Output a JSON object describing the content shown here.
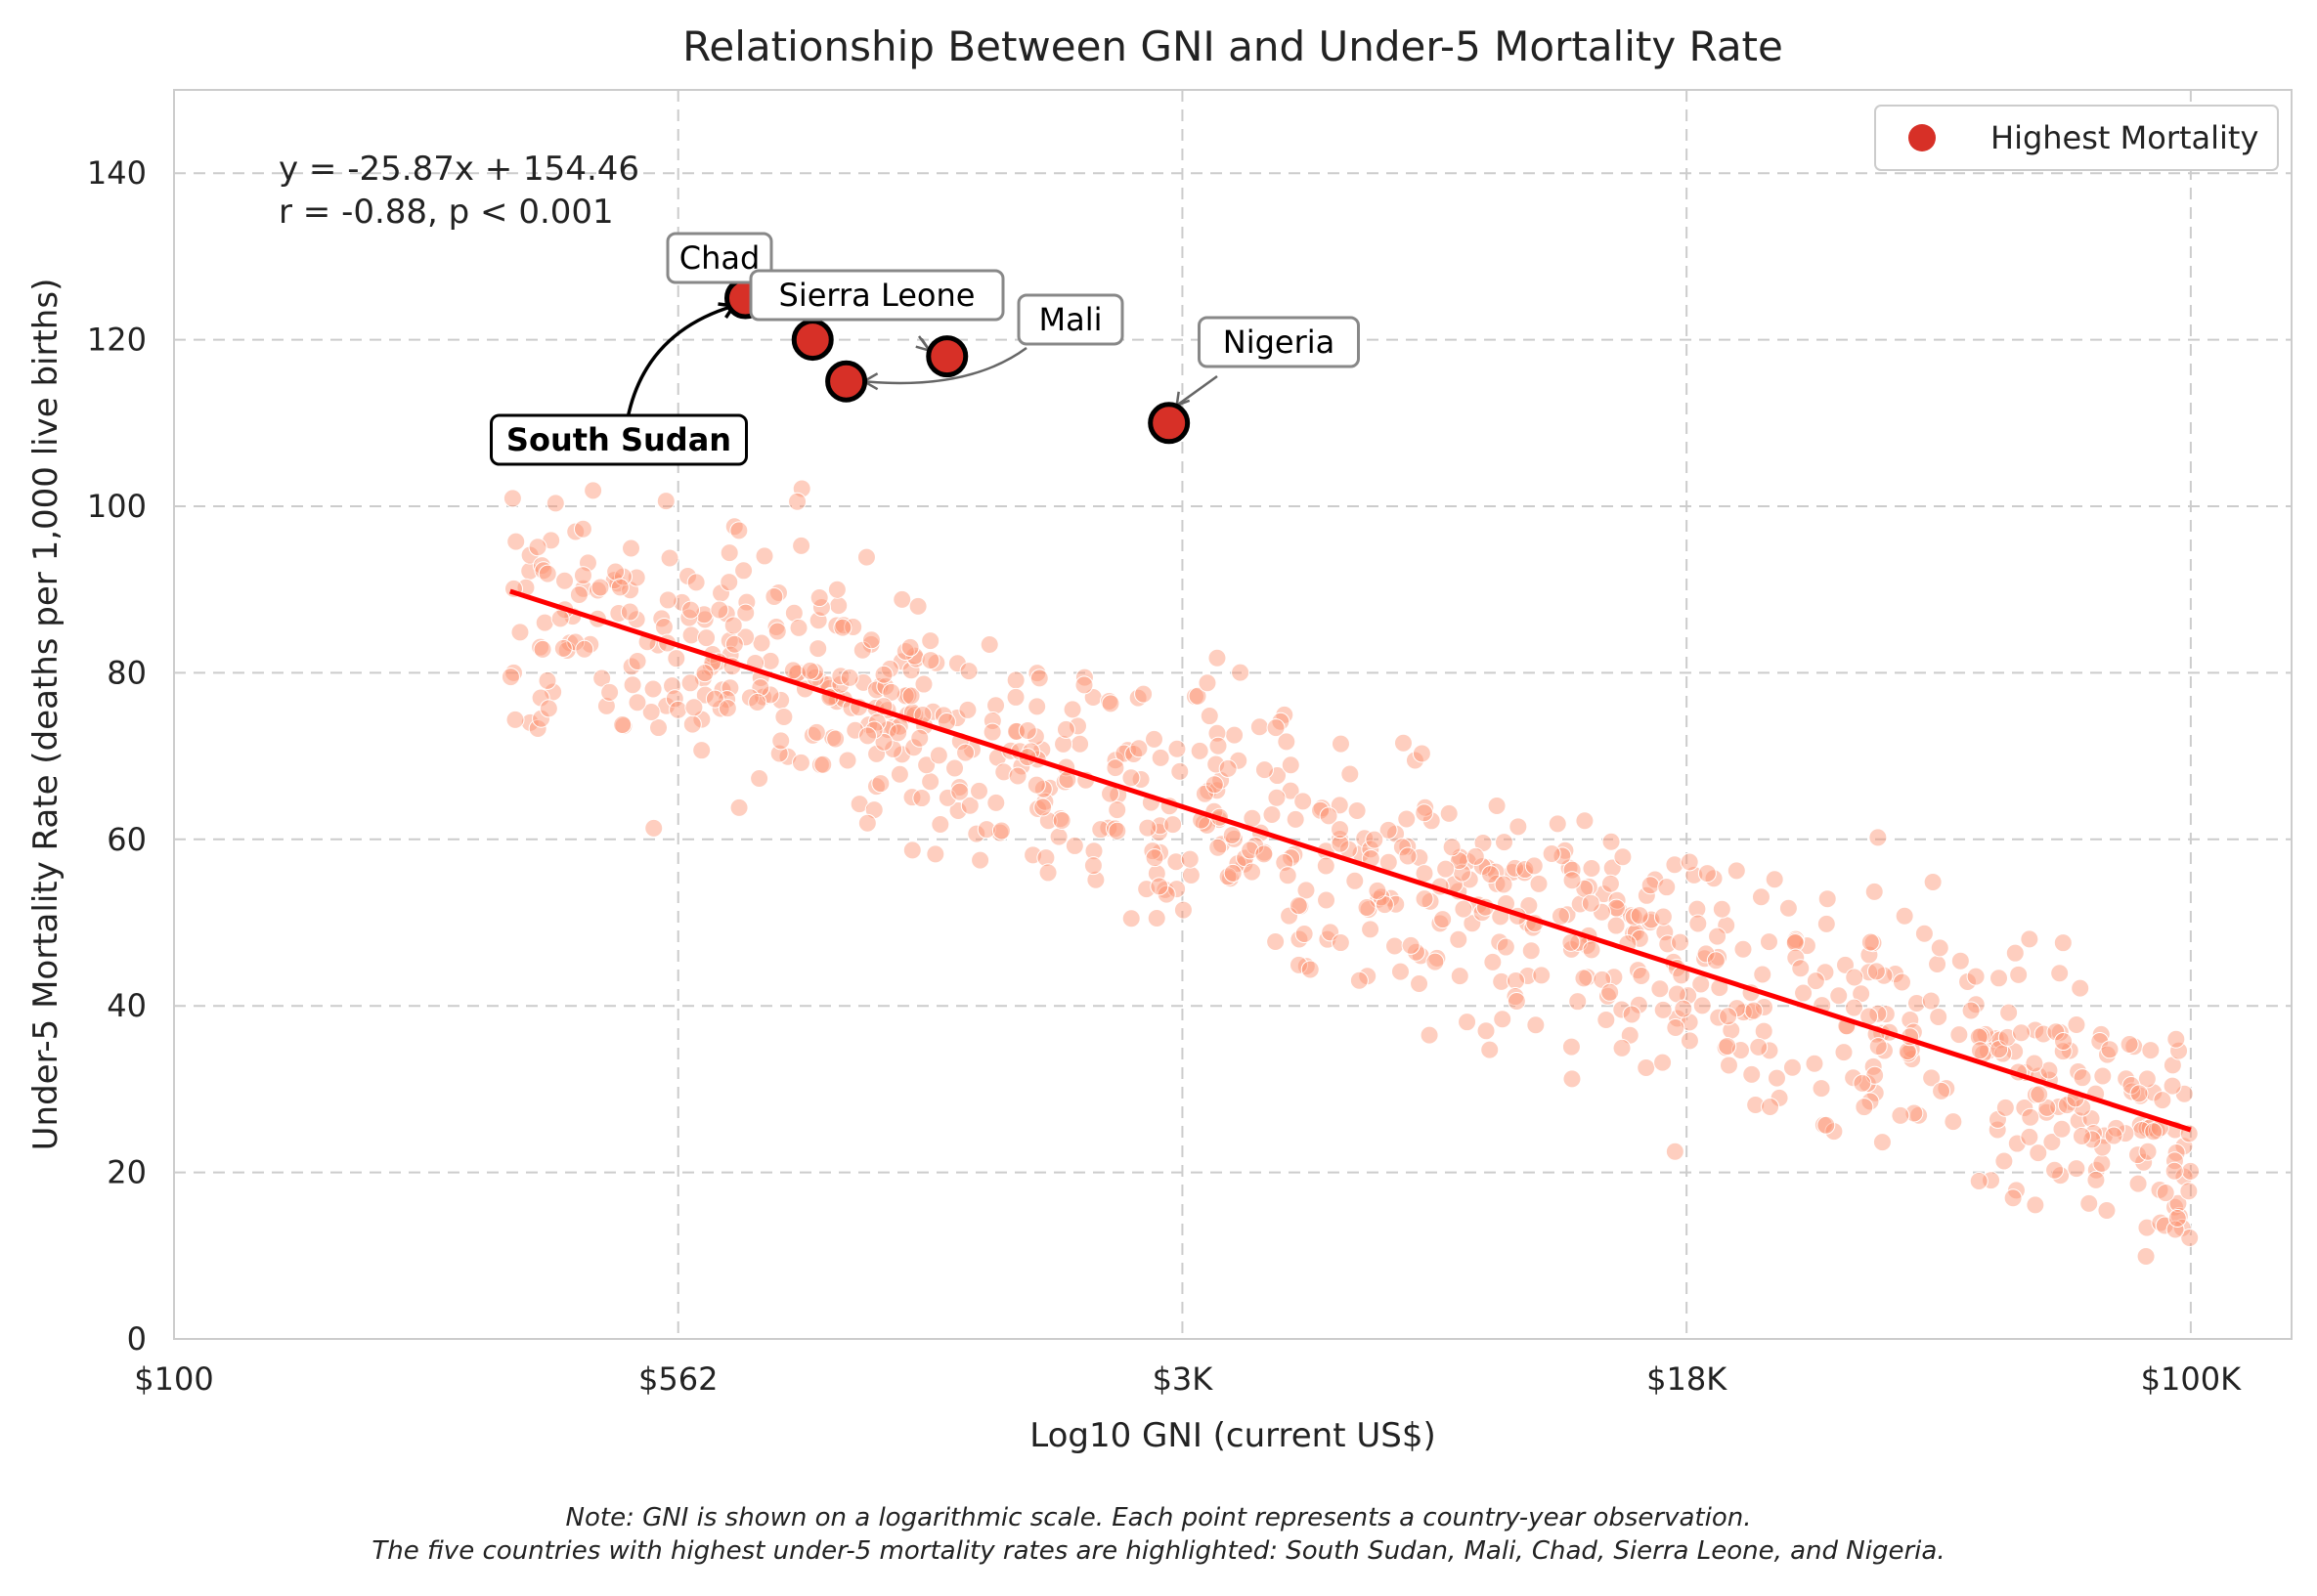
{
  "chart_data": {
    "type": "scatter",
    "title": "Relationship Between GNI and Under-5 Mortality Rate",
    "xlabel": "Log10 GNI (current US$)",
    "ylabel": "Under-5 Mortality Rate (deaths per 1,000 live births)",
    "x_scale": "log10",
    "xlim_log10": [
      2,
      5.15
    ],
    "ylim": [
      0,
      150
    ],
    "x_ticks": [
      {
        "value": 2.0,
        "label": "$100"
      },
      {
        "value": 2.75,
        "label": "$562"
      },
      {
        "value": 3.5,
        "label": "$3K"
      },
      {
        "value": 4.25,
        "label": "$18K"
      },
      {
        "value": 5.0,
        "label": "$100K"
      }
    ],
    "y_ticks": [
      0,
      20,
      40,
      60,
      80,
      100,
      120,
      140
    ],
    "grid": true,
    "legend": {
      "placement": "top-right",
      "entries": [
        {
          "name": "Highest Mortality",
          "color": "#d73027"
        }
      ]
    },
    "annotation": {
      "equation": "y = -25.87x + 154.46",
      "stats": "r = -0.88, p < 0.001"
    },
    "regression": {
      "slope": -25.87,
      "intercept": 154.46,
      "x_range_log10": [
        2.5,
        5.0
      ],
      "color": "#ff0000"
    },
    "scatter_color": "#fc9272",
    "highlighted": [
      {
        "name": "Chad",
        "log_gni": 2.85,
        "u5mr": 125
      },
      {
        "name": "Sierra Leone",
        "log_gni": 2.95,
        "u5mr": 120
      },
      {
        "name": "South Sudan",
        "log_gni": 3.0,
        "u5mr": 115
      },
      {
        "name": "Mali",
        "log_gni": 3.15,
        "u5mr": 118
      },
      {
        "name": "Nigeria",
        "log_gni": 3.48,
        "u5mr": 110
      }
    ],
    "highlight_color": "#d73027",
    "n_points": 900
  },
  "notes": [
    "Note: GNI is shown on a logarithmic scale. Each point represents a country-year observation.",
    "The five countries with highest under-5 mortality rates are highlighted: South Sudan, Mali, Chad, Sierra Leone, and Nigeria."
  ]
}
